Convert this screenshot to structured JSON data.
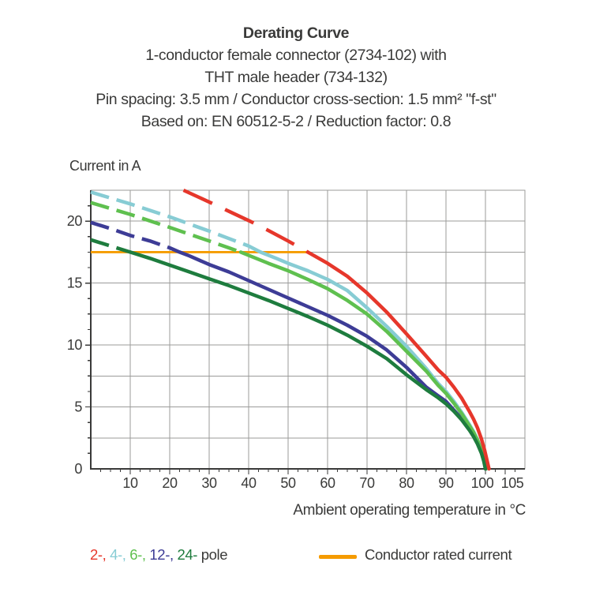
{
  "header": {
    "title": "Derating Curve",
    "subtitle_lines": [
      "1-conductor female connector (2734-102) with",
      "THT male header (734-132)",
      "Pin spacing: 3.5 mm / Conductor cross-section: 1.5 mm² \"f-st\"",
      "Based on: EN 60512-5-2 / Reduction factor: 0.8"
    ]
  },
  "chart_data": {
    "type": "line",
    "title": "Derating Curve",
    "xlabel": "Ambient operating temperature in °C",
    "ylabel": "Current in A",
    "xlim": [
      0,
      110
    ],
    "ylim": [
      0,
      22.5
    ],
    "x_major_ticks": [
      10,
      20,
      30,
      40,
      50,
      60,
      70,
      80,
      90,
      100,
      105
    ],
    "x_minor_step": 2.5,
    "y_major_ticks": [
      0,
      5,
      10,
      15,
      20
    ],
    "y_minor_step": 1.25,
    "x_grid_step": 10,
    "y_grid_step": 2.5,
    "grid": true,
    "colors": {
      "grid": "#9B9B9A",
      "axis": "#3A3A39",
      "rated": "#F59B00"
    },
    "rated_current_line": {
      "label": "Conductor rated current",
      "value": 17.5,
      "x_start": 0,
      "x_end": 55,
      "color": "#F59B00"
    },
    "series": [
      {
        "name": "4-pole",
        "color": "#87CCD4",
        "dash_until_x": 43,
        "points": [
          [
            0,
            22.35
          ],
          [
            10,
            21.4
          ],
          [
            20,
            20.35
          ],
          [
            30,
            19.2
          ],
          [
            35,
            18.6
          ],
          [
            40,
            18.0
          ],
          [
            43,
            17.5
          ],
          [
            47,
            17.0
          ],
          [
            50,
            16.6
          ],
          [
            55,
            16.0
          ],
          [
            60,
            15.3
          ],
          [
            65,
            14.4
          ],
          [
            70,
            13.0
          ],
          [
            75,
            11.5
          ],
          [
            80,
            9.9
          ],
          [
            85,
            8.1
          ],
          [
            88,
            6.9
          ],
          [
            90,
            6.25
          ],
          [
            92,
            5.45
          ],
          [
            94,
            4.55
          ],
          [
            96,
            3.55
          ],
          [
            97,
            3.0
          ],
          [
            98,
            2.35
          ],
          [
            99,
            1.55
          ],
          [
            99.7,
            0.85
          ],
          [
            100.2,
            0
          ]
        ]
      },
      {
        "name": "12-pole",
        "color": "#3D3C96",
        "dash_until_x": 22.5,
        "points": [
          [
            0,
            19.9
          ],
          [
            5,
            19.4
          ],
          [
            10,
            18.85
          ],
          [
            15,
            18.4
          ],
          [
            20,
            17.85
          ],
          [
            22.5,
            17.5
          ],
          [
            25,
            17.2
          ],
          [
            30,
            16.5
          ],
          [
            35,
            15.9
          ],
          [
            40,
            15.2
          ],
          [
            45,
            14.5
          ],
          [
            50,
            13.8
          ],
          [
            55,
            13.1
          ],
          [
            60,
            12.4
          ],
          [
            65,
            11.6
          ],
          [
            70,
            10.7
          ],
          [
            75,
            9.6
          ],
          [
            80,
            8.2
          ],
          [
            85,
            6.6
          ],
          [
            88,
            5.9
          ],
          [
            90,
            5.45
          ],
          [
            92,
            4.75
          ],
          [
            94,
            4.05
          ],
          [
            96,
            3.2
          ],
          [
            97,
            2.7
          ],
          [
            98,
            2.1
          ],
          [
            99,
            1.3
          ],
          [
            99.6,
            0.67
          ],
          [
            100,
            0
          ]
        ]
      },
      {
        "name": "6-pole",
        "color": "#5FC04F",
        "dash_until_x": 38,
        "points": [
          [
            0,
            21.5
          ],
          [
            10,
            20.55
          ],
          [
            20,
            19.5
          ],
          [
            25,
            18.95
          ],
          [
            30,
            18.4
          ],
          [
            35,
            17.85
          ],
          [
            38,
            17.5
          ],
          [
            45,
            16.6
          ],
          [
            50,
            16.0
          ],
          [
            55,
            15.3
          ],
          [
            60,
            14.55
          ],
          [
            65,
            13.6
          ],
          [
            70,
            12.5
          ],
          [
            75,
            11.1
          ],
          [
            80,
            9.5
          ],
          [
            85,
            7.9
          ],
          [
            88,
            6.75
          ],
          [
            90,
            6.1
          ],
          [
            92,
            5.3
          ],
          [
            94,
            4.45
          ],
          [
            96,
            3.45
          ],
          [
            97,
            2.95
          ],
          [
            98,
            2.3
          ],
          [
            99,
            1.5
          ],
          [
            99.7,
            0.8
          ],
          [
            100.15,
            0
          ]
        ]
      },
      {
        "name": "24-pole",
        "color": "#1E7C3E",
        "dash_until_x": 10,
        "points": [
          [
            0,
            18.5
          ],
          [
            5,
            18.0
          ],
          [
            10,
            17.5
          ],
          [
            15,
            17.0
          ],
          [
            20,
            16.45
          ],
          [
            25,
            15.9
          ],
          [
            30,
            15.35
          ],
          [
            35,
            14.8
          ],
          [
            40,
            14.2
          ],
          [
            45,
            13.6
          ],
          [
            50,
            12.95
          ],
          [
            55,
            12.3
          ],
          [
            60,
            11.6
          ],
          [
            65,
            10.8
          ],
          [
            70,
            9.9
          ],
          [
            75,
            8.9
          ],
          [
            80,
            7.6
          ],
          [
            85,
            6.4
          ],
          [
            88,
            5.75
          ],
          [
            90,
            5.25
          ],
          [
            92,
            4.65
          ],
          [
            94,
            3.95
          ],
          [
            96,
            3.1
          ],
          [
            97,
            2.6
          ],
          [
            98,
            2.0
          ],
          [
            99,
            1.25
          ],
          [
            99.6,
            0.6
          ],
          [
            100,
            0
          ]
        ]
      },
      {
        "name": "2-pole",
        "color": "#E6372B",
        "dash_until_x": 55,
        "points": [
          [
            23.5,
            22.5
          ],
          [
            30,
            21.55
          ],
          [
            35,
            20.8
          ],
          [
            40,
            20.05
          ],
          [
            45,
            19.25
          ],
          [
            50,
            18.4
          ],
          [
            55,
            17.5
          ],
          [
            60,
            16.6
          ],
          [
            65,
            15.55
          ],
          [
            70,
            14.2
          ],
          [
            75,
            12.65
          ],
          [
            80,
            10.9
          ],
          [
            85,
            9.1
          ],
          [
            88,
            8.0
          ],
          [
            90,
            7.4
          ],
          [
            92,
            6.6
          ],
          [
            94,
            5.7
          ],
          [
            96,
            4.6
          ],
          [
            97,
            4.0
          ],
          [
            98,
            3.3
          ],
          [
            99,
            2.4
          ],
          [
            99.8,
            1.5
          ],
          [
            100.9,
            0
          ]
        ]
      }
    ]
  },
  "legend": {
    "pole_segments": [
      {
        "text": "2-,",
        "color": "#E6372B"
      },
      {
        "text": " ",
        "color": "#3A3A39"
      },
      {
        "text": "4-,",
        "color": "#87CCD4"
      },
      {
        "text": " ",
        "color": "#3A3A39"
      },
      {
        "text": "6-,",
        "color": "#5FC04F"
      },
      {
        "text": " ",
        "color": "#3A3A39"
      },
      {
        "text": "12-,",
        "color": "#3D3C96"
      },
      {
        "text": " ",
        "color": "#3A3A39"
      },
      {
        "text": "24-",
        "color": "#1E7C3E"
      },
      {
        "text": " pole",
        "color": "#3A3A39"
      }
    ],
    "rated_label": "Conductor rated current"
  }
}
